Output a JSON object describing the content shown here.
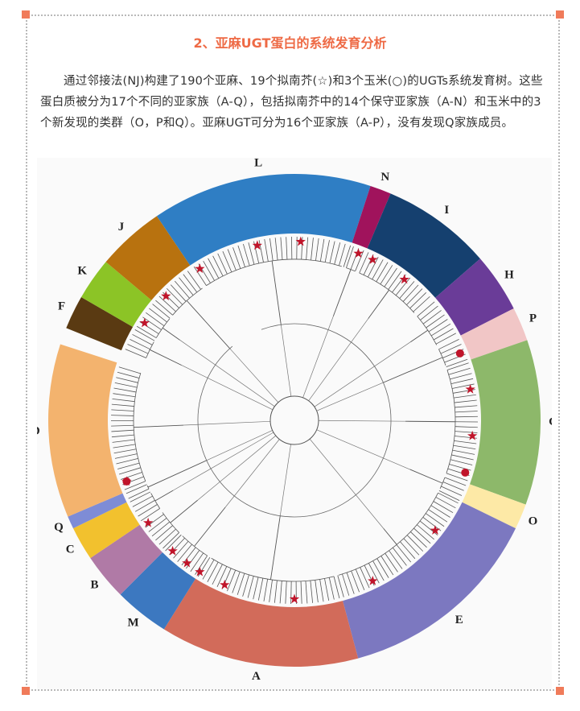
{
  "header": {
    "title": "2、亚麻UGT蛋白的系统发育分析"
  },
  "paragraph": "通过邻接法(NJ)构建了190个亚麻、19个拟南芥(☆)和3个玉米(○)的UGTs系统发育树。这些蛋白质被分为17个不同的亚家族（A-Q），包括拟南芥中的14个保守亚家族（A-N）和玉米中的3个新发现的类群（O，P和Q）。亚麻UGT可分为16个亚家族（A-P），没有发现Q家族成员。",
  "figure": {
    "clades": [
      {
        "label": "L",
        "color": "#2f7ec4"
      },
      {
        "label": "N",
        "color": "#a0135c"
      },
      {
        "label": "I",
        "color": "#15406f"
      },
      {
        "label": "H",
        "color": "#6a3c98"
      },
      {
        "label": "P",
        "color": "#f1c6c6"
      },
      {
        "label": "G",
        "color": "#8db86a"
      },
      {
        "label": "O",
        "color": "#fde9a6"
      },
      {
        "label": "E",
        "color": "#7c78c0"
      },
      {
        "label": "A",
        "color": "#d26b5a"
      },
      {
        "label": "M",
        "color": "#3c78c0"
      },
      {
        "label": "B",
        "color": "#b07aa6"
      },
      {
        "label": "C",
        "color": "#f2c12e"
      },
      {
        "label": "Q",
        "color": "#7e8cd6"
      },
      {
        "label": "D",
        "color": "#f3b36e"
      },
      {
        "label": "F",
        "color": "#5a3a12"
      },
      {
        "label": "K",
        "color": "#8cc426"
      },
      {
        "label": "J",
        "color": "#b8720f"
      }
    ]
  }
}
